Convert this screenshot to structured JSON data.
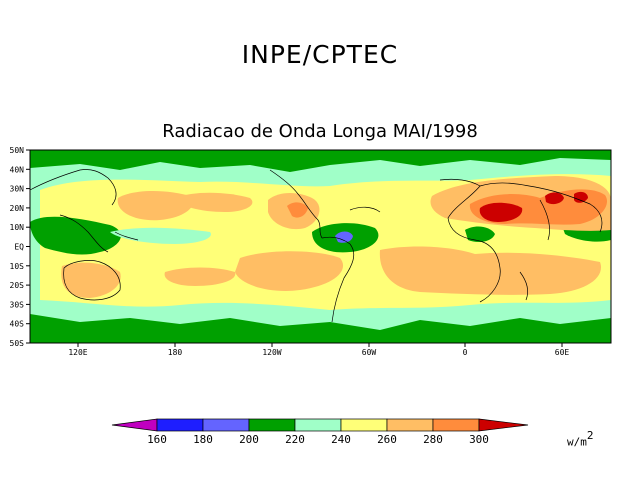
{
  "header": {
    "title": "INPE/CPTEC"
  },
  "map": {
    "title": "Radiacao de Onda Longa MAI/1998",
    "lat_labels": [
      "50N",
      "40N",
      "30N",
      "20N",
      "10N",
      "EQ",
      "10S",
      "20S",
      "30S",
      "40S",
      "50S"
    ],
    "lon_labels": [
      "120E",
      "180",
      "120W",
      "60W",
      "0",
      "60E"
    ]
  },
  "legend": {
    "levels": [
      "160",
      "180",
      "200",
      "220",
      "240",
      "260",
      "280",
      "300"
    ],
    "units": "w/m",
    "units_exp": "2",
    "colors": {
      "lt160": "#c000c0",
      "160_180": "#1e1eff",
      "180_200": "#6464ff",
      "200_220": "#00a000",
      "220_240": "#a0ffc8",
      "240_260": "#ffff78",
      "260_280": "#ffbe64",
      "280_300": "#ff8c3c",
      "gt300": "#cc0000"
    }
  }
}
